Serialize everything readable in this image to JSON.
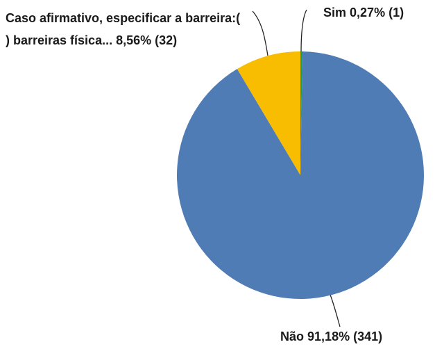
{
  "chart_data": {
    "type": "pie",
    "categories": [
      "Sim",
      "Não",
      "Caso afirmativo, especificar a barreira:( ) barreiras física..."
    ],
    "values": [
      0.27,
      91.18,
      8.56
    ],
    "value_labels": [
      "0,27% (1)",
      "91,18% (341)",
      "8,56% (32)"
    ],
    "colors": [
      "#1e9e4a",
      "#4f7cb4",
      "#f8bd00"
    ]
  }
}
